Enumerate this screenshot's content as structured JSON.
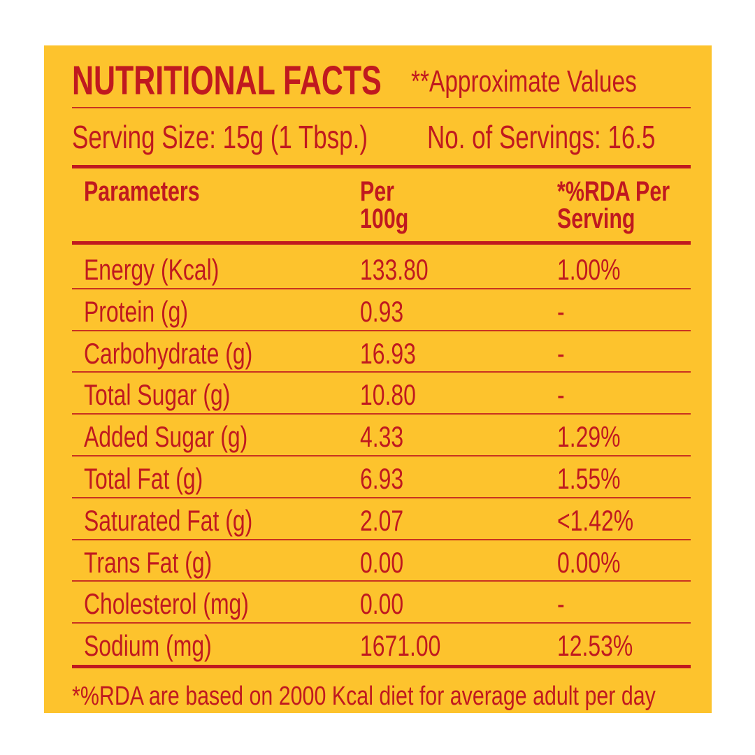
{
  "header": {
    "title": "NUTRITIONAL FACTS",
    "note": "**Approximate Values"
  },
  "serving": {
    "size": "Serving Size: 15g (1 Tbsp.)",
    "count": "No. of Servings: 16.5"
  },
  "table": {
    "columns": [
      "Parameters",
      "Per 100g",
      "*%RDA Per Serving"
    ],
    "rows": [
      [
        "Energy (Kcal)",
        "133.80",
        "1.00%"
      ],
      [
        "Protein (g)",
        "0.93",
        "-"
      ],
      [
        "Carbohydrate (g)",
        "16.93",
        "-"
      ],
      [
        "Total Sugar (g)",
        "10.80",
        "-"
      ],
      [
        "Added Sugar (g)",
        "4.33",
        "1.29%"
      ],
      [
        "Total Fat (g)",
        "6.93",
        "1.55%"
      ],
      [
        "Saturated Fat (g)",
        "2.07",
        "<1.42%"
      ],
      [
        "Trans Fat (g)",
        "0.00",
        "0.00%"
      ],
      [
        "Cholesterol (mg)",
        "0.00",
        "-"
      ],
      [
        "Sodium (mg)",
        "1671.00",
        "12.53%"
      ]
    ]
  },
  "footer": "*%RDA are based on 2000 Kcal diet for average adult per day"
}
